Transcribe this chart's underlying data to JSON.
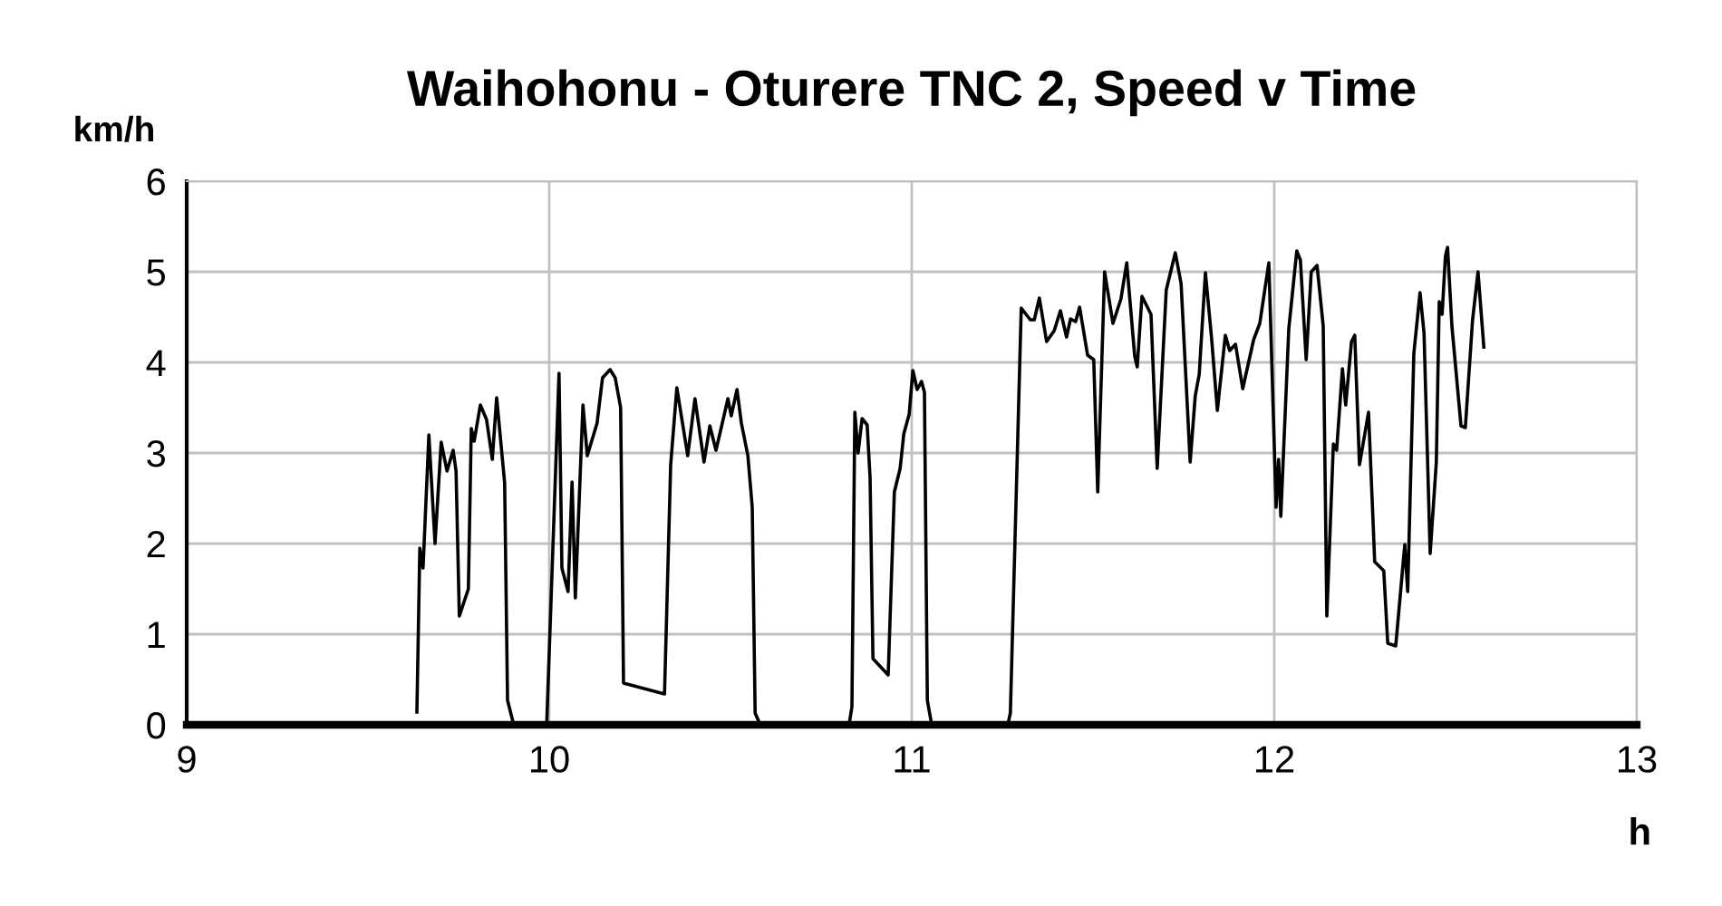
{
  "chart_data": {
    "type": "line",
    "title": "Waihohonu - Oturere TNC 2, Speed v Time",
    "xlabel": "h",
    "ylabel": "km/h",
    "xlim": [
      9,
      13
    ],
    "xticks": [
      9,
      10,
      11,
      12,
      13
    ],
    "ylim": [
      0,
      6
    ],
    "yticks": [
      0,
      1,
      2,
      3,
      4,
      5,
      6
    ],
    "grid": true,
    "legend": false,
    "marker": "none",
    "line_style": "solid",
    "series": [
      {
        "color": "#000000",
        "x": [
          9.635,
          9.643,
          9.652,
          9.668,
          9.685,
          9.702,
          9.718,
          9.735,
          9.743,
          9.752,
          9.777,
          9.785,
          9.793,
          9.81,
          9.827,
          9.843,
          9.855,
          9.877,
          9.885,
          9.902,
          9.993,
          10.027,
          10.035,
          10.052,
          10.063,
          10.072,
          10.093,
          10.105,
          10.132,
          10.147,
          10.168,
          10.182,
          10.197,
          10.205,
          10.318,
          10.335,
          10.352,
          10.382,
          10.402,
          10.427,
          10.443,
          10.46,
          10.493,
          10.502,
          10.518,
          10.53,
          10.548,
          10.56,
          10.568,
          10.582,
          10.827,
          10.835,
          10.843,
          10.852,
          10.863,
          10.877,
          10.885,
          10.893,
          10.935,
          10.952,
          10.968,
          10.978,
          10.993,
          11.003,
          11.015,
          11.027,
          11.035,
          11.043,
          11.055,
          11.265,
          11.272,
          11.302,
          11.327,
          11.338,
          11.352,
          11.372,
          11.393,
          11.41,
          11.427,
          11.438,
          11.452,
          11.463,
          11.485,
          11.502,
          11.513,
          11.532,
          11.555,
          11.577,
          11.593,
          11.615,
          11.622,
          11.635,
          11.66,
          11.677,
          11.702,
          11.727,
          11.743,
          11.768,
          11.782,
          11.793,
          11.81,
          11.827,
          11.843,
          11.865,
          11.877,
          11.893,
          11.913,
          11.943,
          11.96,
          11.985,
          12.005,
          12.012,
          12.018,
          12.04,
          12.062,
          12.072,
          12.088,
          12.102,
          12.118,
          12.135,
          12.145,
          12.163,
          12.172,
          12.188,
          12.197,
          12.213,
          12.222,
          12.235,
          12.26,
          12.277,
          12.302,
          12.313,
          12.335,
          12.36,
          12.368,
          12.385,
          12.402,
          12.413,
          12.43,
          12.447,
          12.455,
          12.463,
          12.472,
          12.478,
          12.49,
          12.515,
          12.527,
          12.547,
          12.562,
          12.578
        ],
        "values": [
          0.14,
          1.95,
          1.73,
          3.2,
          2.0,
          3.12,
          2.8,
          3.03,
          2.8,
          1.2,
          1.5,
          3.27,
          3.13,
          3.53,
          3.37,
          2.93,
          3.61,
          2.67,
          0.27,
          0,
          0,
          3.88,
          1.73,
          1.47,
          2.68,
          1.4,
          3.53,
          2.97,
          3.33,
          3.83,
          3.92,
          3.83,
          3.5,
          0.46,
          0.34,
          2.87,
          3.72,
          2.97,
          3.6,
          2.9,
          3.3,
          3.03,
          3.6,
          3.41,
          3.7,
          3.33,
          2.97,
          2.4,
          0.13,
          0,
          0,
          0.2,
          3.45,
          3.0,
          3.38,
          3.31,
          2.73,
          0.73,
          0.55,
          2.57,
          2.83,
          3.21,
          3.43,
          3.91,
          3.7,
          3.79,
          3.67,
          0.27,
          0,
          0,
          0.13,
          4.6,
          4.47,
          4.47,
          4.71,
          4.23,
          4.35,
          4.57,
          4.28,
          4.48,
          4.45,
          4.61,
          4.08,
          4.03,
          2.57,
          5.0,
          4.43,
          4.7,
          5.1,
          4.07,
          3.95,
          4.73,
          4.53,
          2.83,
          4.8,
          5.21,
          4.87,
          2.9,
          3.63,
          3.87,
          4.99,
          4.27,
          3.47,
          4.3,
          4.13,
          4.2,
          3.71,
          4.25,
          4.43,
          5.1,
          2.4,
          2.93,
          2.3,
          4.37,
          5.23,
          5.13,
          4.03,
          5.0,
          5.07,
          4.4,
          1.2,
          3.1,
          3.03,
          3.93,
          3.53,
          4.23,
          4.3,
          2.87,
          3.45,
          1.8,
          1.7,
          0.9,
          0.87,
          1.99,
          1.47,
          4.1,
          4.77,
          4.33,
          1.89,
          2.9,
          4.67,
          4.53,
          5.17,
          5.27,
          4.4,
          3.3,
          3.28,
          4.47,
          5.0,
          4.17
        ]
      }
    ]
  }
}
